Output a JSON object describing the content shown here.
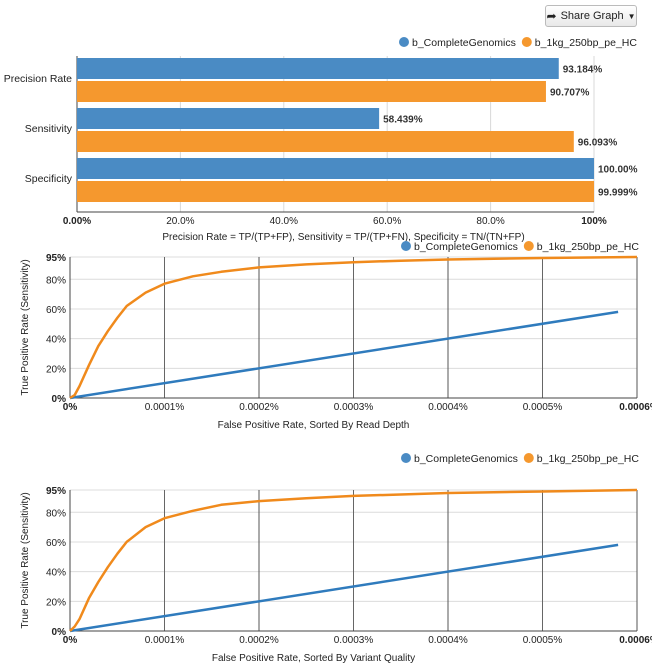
{
  "share_button": {
    "label": "Share Graph",
    "icon": "share-arrow-icon",
    "caret_icon": "caret-down-icon"
  },
  "colors": {
    "blue": "#4a8bc4",
    "orange": "#f5982e",
    "blue_line": "#2f7bbd",
    "orange_line": "#f08a1c"
  },
  "chart_data": [
    {
      "type": "bar",
      "orientation": "horizontal",
      "categories": [
        "Precision Rate",
        "Sensitivity",
        "Specificity"
      ],
      "series": [
        {
          "name": "b_CompleteGenomics",
          "values": [
            93.184,
            58.439,
            100.0
          ],
          "labels": [
            "93.184%",
            "58.439%",
            "100.00%"
          ]
        },
        {
          "name": "b_1kg_250bp_pe_HC",
          "values": [
            90.707,
            96.093,
            99.999
          ],
          "labels": [
            "90.707%",
            "96.093%",
            "99.999%"
          ]
        }
      ],
      "xticks": [
        "0.00%",
        "20.0%",
        "40.0%",
        "60.0%",
        "80.0%",
        "100%"
      ],
      "xlim": [
        0,
        100
      ],
      "xlabel": "Precision Rate = TP/(TP+FP), Sensitivity = TP/(TP+FN), Specificity = TN/(TN+FP)",
      "legend_position": "top-right"
    },
    {
      "type": "line",
      "xlabel": "False Positive Rate, Sorted By Read Depth",
      "ylabel": "True Positive Rate (Sensitivity)",
      "xlim": [
        0,
        0.0006
      ],
      "ylim": [
        0,
        95
      ],
      "xticks": [
        "0%",
        "0.0001%",
        "0.0002%",
        "0.0003%",
        "0.0004%",
        "0.0005%",
        "0.0006%"
      ],
      "yticks": [
        "0%",
        "20%",
        "40%",
        "60%",
        "80%",
        "95%"
      ],
      "series": [
        {
          "name": "b_CompleteGenomics",
          "x": [
            0,
            0.00058
          ],
          "y": [
            0,
            58
          ]
        },
        {
          "name": "b_1kg_250bp_pe_HC",
          "x": [
            0,
            5e-06,
            1e-05,
            2e-05,
            3e-05,
            4e-05,
            5e-05,
            6e-05,
            8e-05,
            0.0001,
            0.00013,
            0.00016,
            0.0002,
            0.00025,
            0.0003,
            0.00035,
            0.0004,
            0.0005,
            0.0006
          ],
          "y": [
            0,
            2,
            8,
            22,
            35,
            45,
            54,
            62,
            71,
            77,
            82,
            85,
            88,
            90,
            91.5,
            92.5,
            93.3,
            94.3,
            95
          ]
        }
      ],
      "legend_position": "top-right"
    },
    {
      "type": "line",
      "xlabel": "False Positive Rate, Sorted By Variant Quality",
      "ylabel": "True Positive Rate (Sensitivity)",
      "xlim": [
        0,
        0.0006
      ],
      "ylim": [
        0,
        95
      ],
      "xticks": [
        "0%",
        "0.0001%",
        "0.0002%",
        "0.0003%",
        "0.0004%",
        "0.0005%",
        "0.0006%"
      ],
      "yticks": [
        "0%",
        "20%",
        "40%",
        "60%",
        "80%",
        "95%"
      ],
      "series": [
        {
          "name": "b_CompleteGenomics",
          "x": [
            0,
            0.00058
          ],
          "y": [
            0,
            58
          ]
        },
        {
          "name": "b_1kg_250bp_pe_HC",
          "x": [
            0,
            5e-06,
            1e-05,
            2e-05,
            3e-05,
            4e-05,
            5e-05,
            6e-05,
            8e-05,
            0.0001,
            0.00013,
            0.00016,
            0.0002,
            0.00025,
            0.0003,
            0.00035,
            0.0004,
            0.0005,
            0.0006
          ],
          "y": [
            0,
            3,
            8,
            22,
            33,
            43,
            52,
            60,
            70,
            76,
            81,
            85,
            87.5,
            89.5,
            91,
            92,
            93,
            94,
            95
          ]
        }
      ],
      "legend_position": "top-right"
    }
  ]
}
